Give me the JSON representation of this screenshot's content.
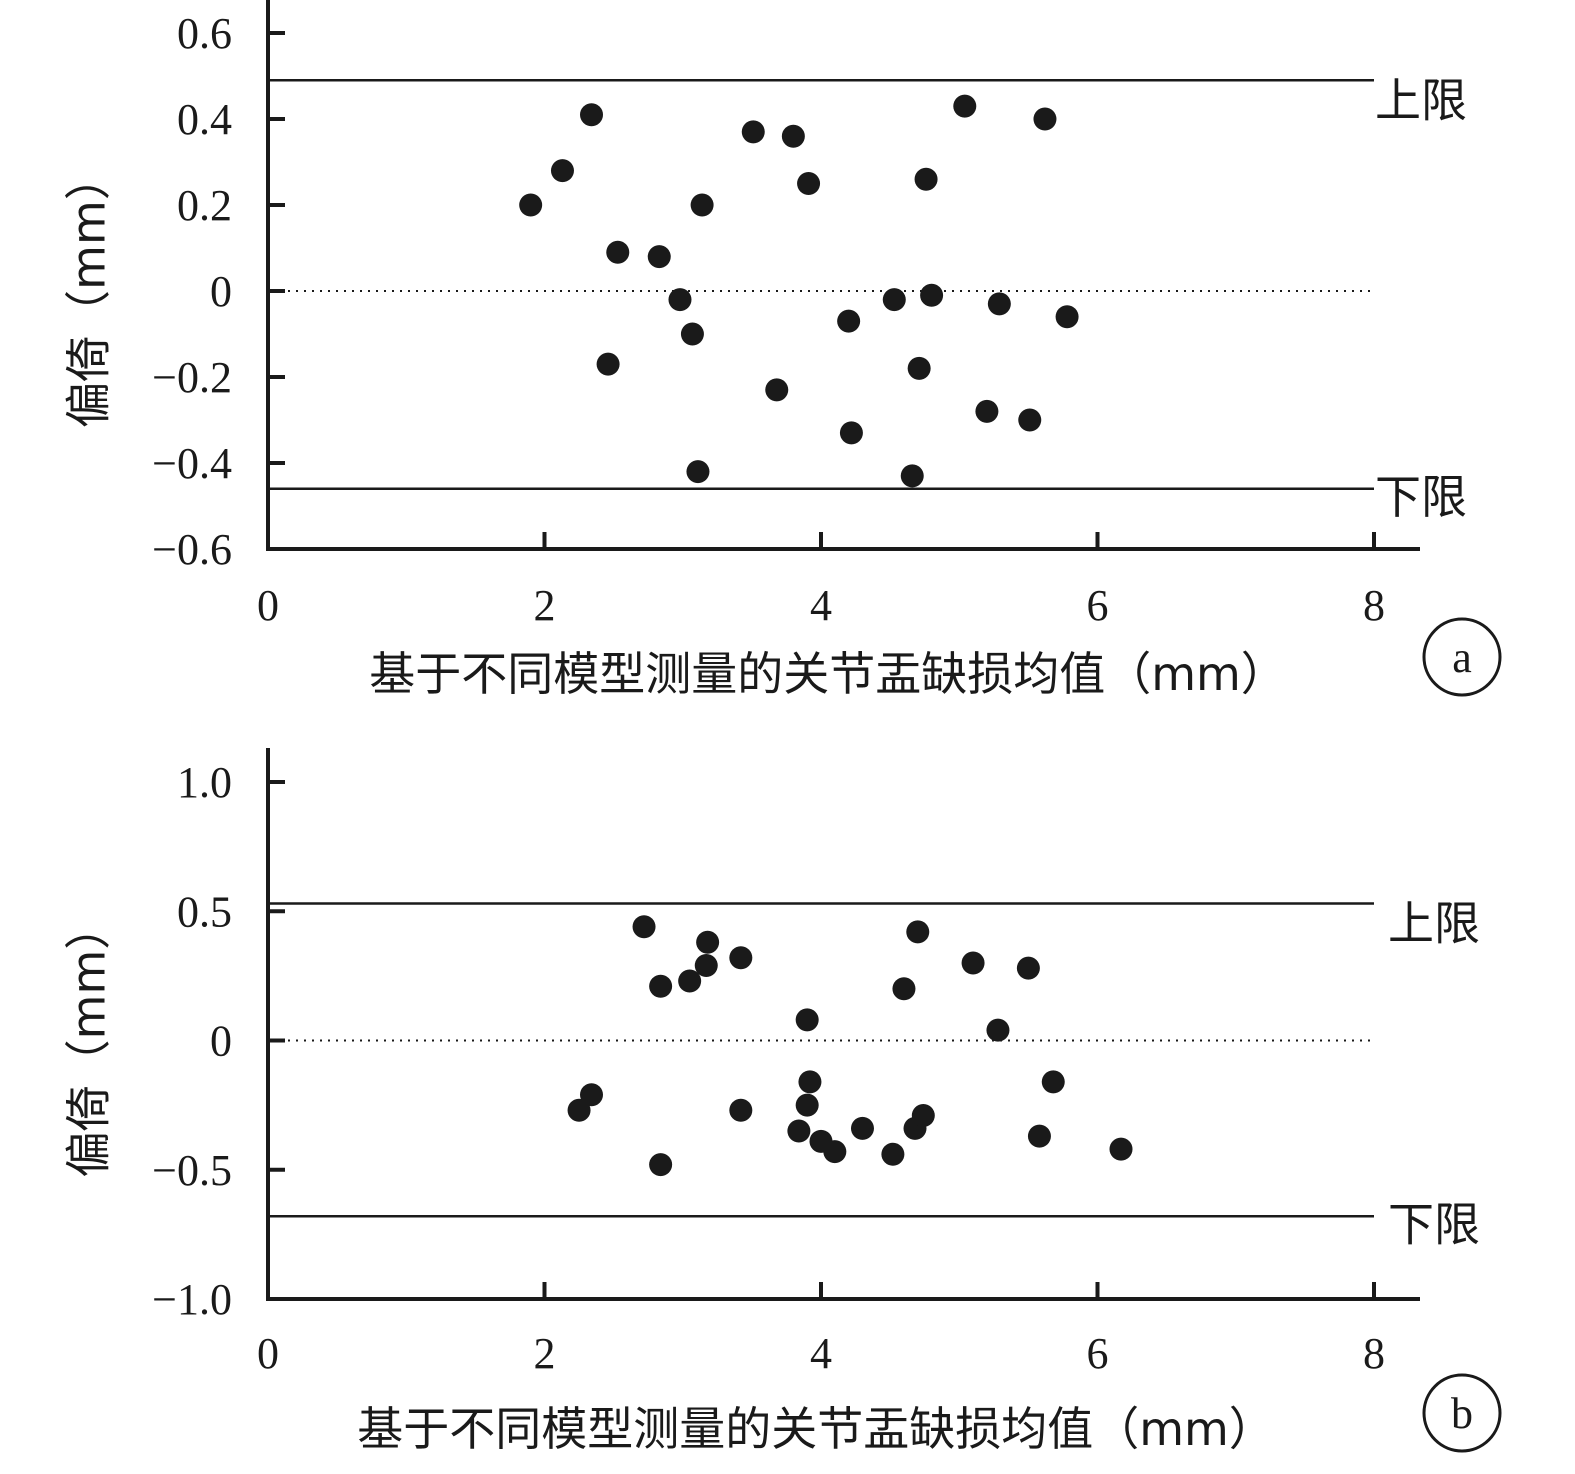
{
  "chart_data": [
    {
      "type": "scatter",
      "panel_label": "a",
      "xlabel": "基于不同模型测量的关节盂缺损均值（mm）",
      "ylabel": "偏倚（mm）",
      "xlim": [
        0,
        8
      ],
      "ylim": [
        -0.6,
        0.6
      ],
      "xticks": [
        0,
        2,
        4,
        6,
        8
      ],
      "xtick_labels": [
        "0",
        "2",
        "4",
        "6",
        "8"
      ],
      "yticks": [
        0.6,
        0.4,
        0.2,
        0,
        -0.2,
        -0.4,
        -0.6
      ],
      "ytick_labels": [
        "0.6",
        "0.4",
        "0.2",
        "0",
        "−0.2",
        "−0.4",
        "−0.6"
      ],
      "upper_limit": {
        "value": 0.49,
        "label": "上限"
      },
      "lower_limit": {
        "value": -0.46,
        "label": "下限"
      },
      "mean_line": 0,
      "points": [
        {
          "x": 1.9,
          "y": 0.2
        },
        {
          "x": 2.13,
          "y": 0.28
        },
        {
          "x": 2.34,
          "y": 0.41
        },
        {
          "x": 2.46,
          "y": -0.17
        },
        {
          "x": 2.53,
          "y": 0.09
        },
        {
          "x": 2.83,
          "y": 0.08
        },
        {
          "x": 2.98,
          "y": -0.02
        },
        {
          "x": 3.07,
          "y": -0.1
        },
        {
          "x": 3.11,
          "y": -0.42
        },
        {
          "x": 3.14,
          "y": 0.2
        },
        {
          "x": 3.51,
          "y": 0.37
        },
        {
          "x": 3.68,
          "y": -0.23
        },
        {
          "x": 3.8,
          "y": 0.36
        },
        {
          "x": 3.91,
          "y": 0.25
        },
        {
          "x": 4.2,
          "y": -0.07
        },
        {
          "x": 4.22,
          "y": -0.33
        },
        {
          "x": 4.53,
          "y": -0.02
        },
        {
          "x": 4.66,
          "y": -0.43
        },
        {
          "x": 4.71,
          "y": -0.18
        },
        {
          "x": 4.76,
          "y": 0.26
        },
        {
          "x": 4.8,
          "y": -0.01
        },
        {
          "x": 5.04,
          "y": 0.43
        },
        {
          "x": 5.2,
          "y": -0.28
        },
        {
          "x": 5.29,
          "y": -0.03
        },
        {
          "x": 5.51,
          "y": -0.3
        },
        {
          "x": 5.62,
          "y": 0.4
        },
        {
          "x": 5.78,
          "y": -0.06
        }
      ]
    },
    {
      "type": "scatter",
      "panel_label": "b",
      "xlabel": "基于不同模型测量的关节盂缺损均值（mm）",
      "ylabel": "偏倚（mm）",
      "xlim": [
        0,
        8
      ],
      "ylim": [
        -1.0,
        1.0
      ],
      "xticks": [
        0,
        2,
        4,
        6,
        8
      ],
      "xtick_labels": [
        "0",
        "2",
        "4",
        "6",
        "8"
      ],
      "yticks": [
        1.0,
        0.5,
        0,
        -0.5,
        -1.0
      ],
      "ytick_labels": [
        "1.0",
        "0.5",
        "0",
        "−0.5",
        "−1.0"
      ],
      "upper_limit": {
        "value": 0.53,
        "label": "上限"
      },
      "lower_limit": {
        "value": -0.68,
        "label": "下限"
      },
      "mean_line": 0,
      "points": [
        {
          "x": 2.25,
          "y": -0.27
        },
        {
          "x": 2.34,
          "y": -0.21
        },
        {
          "x": 2.72,
          "y": 0.44
        },
        {
          "x": 2.84,
          "y": 0.21
        },
        {
          "x": 2.84,
          "y": -0.48
        },
        {
          "x": 3.05,
          "y": 0.23
        },
        {
          "x": 3.17,
          "y": 0.29
        },
        {
          "x": 3.18,
          "y": 0.38
        },
        {
          "x": 3.42,
          "y": 0.32
        },
        {
          "x": 3.42,
          "y": -0.27
        },
        {
          "x": 3.84,
          "y": -0.35
        },
        {
          "x": 3.9,
          "y": -0.25
        },
        {
          "x": 3.9,
          "y": 0.08
        },
        {
          "x": 3.92,
          "y": -0.16
        },
        {
          "x": 4.0,
          "y": -0.39
        },
        {
          "x": 4.1,
          "y": -0.43
        },
        {
          "x": 4.3,
          "y": -0.34
        },
        {
          "x": 4.52,
          "y": -0.44
        },
        {
          "x": 4.6,
          "y": 0.2
        },
        {
          "x": 4.68,
          "y": -0.34
        },
        {
          "x": 4.7,
          "y": 0.42
        },
        {
          "x": 4.74,
          "y": -0.29
        },
        {
          "x": 5.1,
          "y": 0.3
        },
        {
          "x": 5.28,
          "y": 0.04
        },
        {
          "x": 5.5,
          "y": 0.28
        },
        {
          "x": 5.58,
          "y": -0.37
        },
        {
          "x": 5.68,
          "y": -0.16
        },
        {
          "x": 6.17,
          "y": -0.42
        }
      ]
    }
  ]
}
